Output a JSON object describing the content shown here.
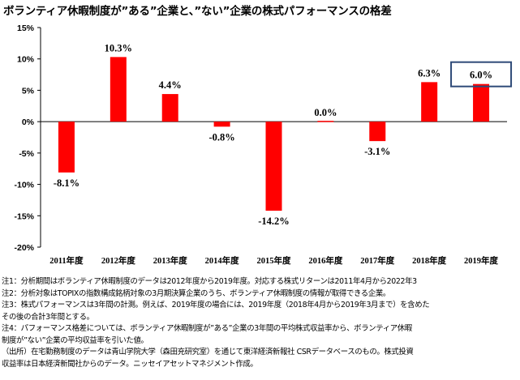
{
  "title": "ボランティア休暇制度が”ある”企業と、”ない”企業の株式パフォーマンスの格差",
  "colors": {
    "bar": "#ff0000",
    "highlight_box": "#2e4a78",
    "axis": "#000000",
    "grid": "#d9d9d9"
  },
  "chart_data": {
    "type": "bar",
    "title": "ボランティア休暇制度が”ある”企業と、”ない”企業の株式パフォーマンスの格差",
    "categories": [
      "2011年度",
      "2012年度",
      "2013年度",
      "2014年度",
      "2015年度",
      "2016年度",
      "2017年度",
      "2018年度",
      "2019年度"
    ],
    "values": [
      -8.1,
      10.3,
      4.4,
      -0.8,
      -14.2,
      0.0,
      -3.1,
      6.3,
      6.0
    ],
    "data_labels": [
      "-8.1%",
      "10.3%",
      "4.4%",
      "-0.8%",
      "-14.2%",
      "0.0%",
      "-3.1%",
      "6.3%",
      "6.0%"
    ],
    "y_ticks": [
      15,
      10,
      5,
      0,
      -5,
      -10,
      -15,
      -20
    ],
    "y_tick_labels": [
      "15%",
      "10%",
      "5%",
      "0%",
      "-5%",
      "-10%",
      "-15%",
      "-20%"
    ],
    "ylim": [
      -20,
      15
    ],
    "xlabel": "",
    "ylabel": "",
    "grid": false,
    "highlighted_category": "2019年度"
  },
  "notes": [
    "注1：分析期間はボランティア休暇制度のデータは2012年度から2019年度。対応する株式リターンは2011年4月から2022年3",
    "注2：分析対象はTOPIXの指数構成銘柄対象の3月期決算企業のうち、ボランティア休暇制度の情報が取得できる企業。",
    "注3：株式パフォーマンスは3年間の計測。例えば、2019年度の場合には、2019年度（2018年4月から2019年3月まで）を含めた",
    "その後の合計3年間とする。",
    "注4：パフォーマンス格差については、ボランティア休暇制度が”ある”企業の3年間の平均株式収益率から、ボランティア休暇",
    "制度が”ない”企業の平均収益率を引いた値。",
    "（出所）在宅勤務制度のデータは青山学院大学（森田充研究室）を通じて東洋経済新報社 CSRデータベースのもの。株式投資",
    "収益率は日本経済新聞社からのデータ。ニッセイアセットマネジメント作成。"
  ]
}
